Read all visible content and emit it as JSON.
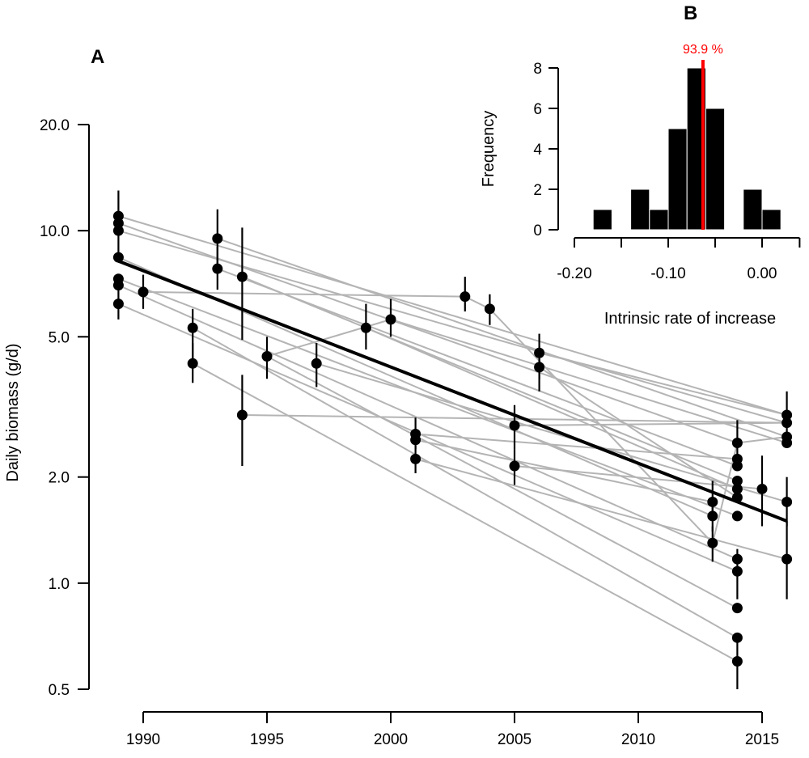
{
  "chart_data": [
    {
      "panel": "A",
      "type": "scatter",
      "ylabel": "Daily biomass (g/d)",
      "xlabel": "",
      "y_scale": "log",
      "xlim": [
        1989,
        2016
      ],
      "ylim": [
        0.5,
        20
      ],
      "x_ticks": [
        "1990",
        "1995",
        "2000",
        "2005",
        "2010",
        "2015"
      ],
      "x_tick_values": [
        1990,
        1995,
        2000,
        2005,
        2010,
        2015
      ],
      "y_ticks": [
        "0.5",
        "1.0",
        "2.0",
        "5.0",
        "10.0",
        "20.0"
      ],
      "y_tick_values": [
        0.5,
        1.0,
        2.0,
        5.0,
        10.0,
        20.0
      ],
      "trend_line": {
        "x": [
          1989,
          2016
        ],
        "y": [
          8.2,
          1.5
        ]
      },
      "points": [
        {
          "x": 1989,
          "y": 11.0,
          "lo": 8.2,
          "hi": 13.0
        },
        {
          "x": 1989,
          "y": 10.5
        },
        {
          "x": 1989,
          "y": 10.0
        },
        {
          "x": 1989,
          "y": 8.4
        },
        {
          "x": 1989,
          "y": 7.3
        },
        {
          "x": 1989,
          "y": 7.0
        },
        {
          "x": 1989,
          "y": 6.2,
          "lo": 5.6,
          "hi": 7.5
        },
        {
          "x": 1990,
          "y": 6.7,
          "lo": 6.0,
          "hi": 7.5
        },
        {
          "x": 1992,
          "y": 5.3,
          "lo": 4.3,
          "hi": 6.0
        },
        {
          "x": 1992,
          "y": 4.2,
          "lo": 3.7,
          "hi": 4.8
        },
        {
          "x": 1993,
          "y": 9.5,
          "lo": 8.0,
          "hi": 11.5
        },
        {
          "x": 1993,
          "y": 7.8,
          "lo": 6.8,
          "hi": 9.0
        },
        {
          "x": 1994,
          "y": 7.4,
          "lo": 4.9,
          "hi": 10.2
        },
        {
          "x": 1994,
          "y": 3.0,
          "lo": 2.15,
          "hi": 3.9
        },
        {
          "x": 1995,
          "y": 4.4,
          "lo": 3.8,
          "hi": 5.0
        },
        {
          "x": 1997,
          "y": 4.2,
          "lo": 3.6,
          "hi": 4.8
        },
        {
          "x": 1999,
          "y": 5.3,
          "lo": 4.6,
          "hi": 6.2
        },
        {
          "x": 2000,
          "y": 5.6,
          "lo": 5.0,
          "hi": 6.4
        },
        {
          "x": 2001,
          "y": 2.65,
          "lo": 2.4,
          "hi": 2.95
        },
        {
          "x": 2001,
          "y": 2.55
        },
        {
          "x": 2001,
          "y": 2.25,
          "lo": 2.05,
          "hi": 2.45
        },
        {
          "x": 2003,
          "y": 6.5,
          "lo": 5.9,
          "hi": 7.4
        },
        {
          "x": 2004,
          "y": 6.0,
          "lo": 5.4,
          "hi": 6.6
        },
        {
          "x": 2005,
          "y": 2.8,
          "lo": 2.4,
          "hi": 3.2
        },
        {
          "x": 2005,
          "y": 2.15,
          "lo": 1.9,
          "hi": 2.4
        },
        {
          "x": 2006,
          "y": 4.5,
          "lo": 3.8,
          "hi": 5.1
        },
        {
          "x": 2006,
          "y": 4.1,
          "lo": 3.5,
          "hi": 4.7
        },
        {
          "x": 2013,
          "y": 1.7,
          "lo": 1.55,
          "hi": 1.95
        },
        {
          "x": 2013,
          "y": 1.55,
          "lo": 1.4,
          "hi": 1.7
        },
        {
          "x": 2013,
          "y": 1.3,
          "lo": 1.15,
          "hi": 1.45
        },
        {
          "x": 2014,
          "y": 2.5,
          "lo": 2.1,
          "hi": 2.9
        },
        {
          "x": 2014,
          "y": 2.25
        },
        {
          "x": 2014,
          "y": 2.15
        },
        {
          "x": 2014,
          "y": 1.95
        },
        {
          "x": 2014,
          "y": 1.85
        },
        {
          "x": 2014,
          "y": 1.75
        },
        {
          "x": 2014,
          "y": 1.55
        },
        {
          "x": 2014,
          "y": 1.17
        },
        {
          "x": 2014,
          "y": 1.08,
          "lo": 0.9,
          "hi": 1.25
        },
        {
          "x": 2014,
          "y": 0.85
        },
        {
          "x": 2014,
          "y": 0.7
        },
        {
          "x": 2014,
          "y": 0.6,
          "lo": 0.5,
          "hi": 0.7
        },
        {
          "x": 2015,
          "y": 1.85,
          "lo": 1.45,
          "hi": 2.3
        },
        {
          "x": 2016,
          "y": 3.0,
          "lo": 2.6,
          "hi": 3.5
        },
        {
          "x": 2016,
          "y": 2.85
        },
        {
          "x": 2016,
          "y": 2.6
        },
        {
          "x": 2016,
          "y": 2.5
        },
        {
          "x": 2016,
          "y": 1.7,
          "lo": 1.45,
          "hi": 2.0
        },
        {
          "x": 2016,
          "y": 1.17,
          "lo": 0.9,
          "hi": 1.5
        }
      ],
      "population_lines": [
        [
          [
            1989,
            11.0
          ],
          [
            2016,
            3.0
          ]
        ],
        [
          [
            1989,
            10.5
          ],
          [
            2014,
            2.5
          ]
        ],
        [
          [
            1989,
            10.0
          ],
          [
            2016,
            2.85
          ]
        ],
        [
          [
            1989,
            8.4
          ],
          [
            2013,
            1.55
          ]
        ],
        [
          [
            1989,
            7.3
          ],
          [
            2014,
            1.55
          ]
        ],
        [
          [
            1989,
            7.0
          ],
          [
            2014,
            1.17
          ]
        ],
        [
          [
            1989,
            6.2
          ],
          [
            2014,
            1.08
          ]
        ],
        [
          [
            1990,
            6.7
          ],
          [
            2003,
            6.5
          ]
        ],
        [
          [
            1992,
            5.3
          ],
          [
            2014,
            0.7
          ]
        ],
        [
          [
            1992,
            4.2
          ],
          [
            2014,
            0.6
          ]
        ],
        [
          [
            1993,
            9.5
          ],
          [
            2016,
            2.6
          ]
        ],
        [
          [
            1993,
            7.8
          ],
          [
            2014,
            2.15
          ]
        ],
        [
          [
            1994,
            7.4
          ],
          [
            2014,
            1.95
          ]
        ],
        [
          [
            1994,
            3.0
          ],
          [
            2016,
            2.85
          ]
        ],
        [
          [
            1995,
            4.4
          ],
          [
            2000,
            5.6
          ]
        ],
        [
          [
            1995,
            4.4
          ],
          [
            2014,
            0.85
          ]
        ],
        [
          [
            1997,
            4.2
          ],
          [
            2016,
            1.7
          ]
        ],
        [
          [
            1999,
            5.3
          ],
          [
            2014,
            1.85
          ]
        ],
        [
          [
            2000,
            5.6
          ],
          [
            2016,
            2.5
          ]
        ],
        [
          [
            2001,
            2.65
          ],
          [
            2014,
            2.25
          ]
        ],
        [
          [
            2001,
            2.55
          ],
          [
            2013,
            1.7
          ]
        ],
        [
          [
            2001,
            2.25
          ],
          [
            2016,
            1.17
          ]
        ],
        [
          [
            2003,
            6.5
          ],
          [
            2004,
            6.0
          ]
        ],
        [
          [
            2004,
            6.0
          ],
          [
            2013,
            1.3
          ]
        ],
        [
          [
            2005,
            2.8
          ],
          [
            2016,
            2.85
          ]
        ],
        [
          [
            2005,
            2.15
          ],
          [
            2015,
            1.85
          ]
        ],
        [
          [
            2006,
            4.5
          ],
          [
            2016,
            3.0
          ]
        ],
        [
          [
            2006,
            4.1
          ],
          [
            2014,
            1.75
          ]
        ],
        [
          [
            2013,
            1.3
          ],
          [
            2014,
            2.5
          ]
        ],
        [
          [
            2014,
            2.5
          ],
          [
            2016,
            2.6
          ]
        ]
      ]
    },
    {
      "panel": "B",
      "type": "bar",
      "xlabel": "Intrinsic rate of increase",
      "ylabel": "Frequency",
      "xlim": [
        -0.2,
        0.04
      ],
      "ylim": [
        0,
        8
      ],
      "x_ticks": [
        "-0.20",
        "-0.10",
        "0.00"
      ],
      "x_tick_values": [
        -0.2,
        -0.1,
        0.0
      ],
      "y_ticks": [
        "0",
        "2",
        "4",
        "6",
        "8"
      ],
      "y_tick_values": [
        0,
        2,
        4,
        6,
        8
      ],
      "bin_edges": [
        -0.18,
        -0.16,
        -0.14,
        -0.12,
        -0.1,
        -0.08,
        -0.06,
        -0.04,
        -0.02,
        0.0,
        0.02
      ],
      "counts": [
        1,
        0,
        2,
        1,
        5,
        8,
        6,
        0,
        2,
        1
      ],
      "marker_x": -0.063,
      "marker_label": "93.9 %",
      "marker_color": "#ff0000"
    }
  ],
  "labels": {
    "panel_a": "A",
    "panel_b": "B"
  }
}
